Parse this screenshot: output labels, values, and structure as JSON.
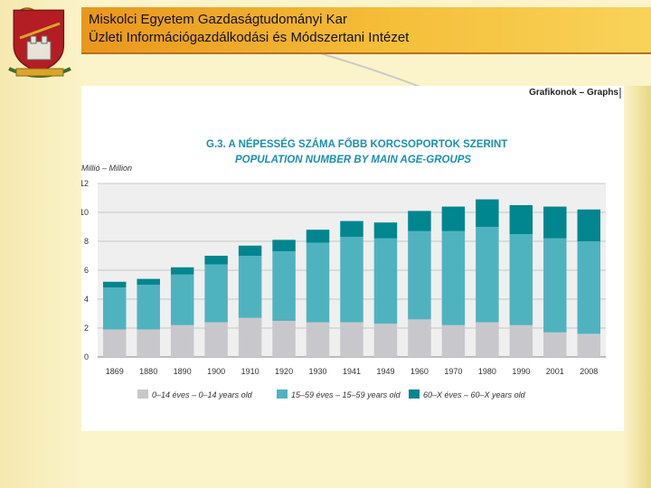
{
  "header": {
    "line1": "Miskolci Egyetem Gazdaságtudományi Kar",
    "line2": "Üzleti Információgazdálkodási és Módszertani Intézet"
  },
  "logo": {
    "icon": "university-crest-icon"
  },
  "figure": {
    "section_label": "Grafikonok – Graphs",
    "y_unit_label": "Millió – Million"
  },
  "chart_data": {
    "type": "bar",
    "stacked": true,
    "title": "G.3. A NÉPESSÉG SZÁMA FŐBB KORCSOPORTOK SZERINT",
    "subtitle": "POPULATION NUMBER BY MAIN AGE-GROUPS",
    "xlabel": "",
    "ylabel": "Millió – Million",
    "ylim": [
      0,
      12
    ],
    "yticks": [
      0,
      2,
      4,
      6,
      8,
      10,
      12
    ],
    "grid": true,
    "categories": [
      "1869",
      "1880",
      "1890",
      "1900",
      "1910",
      "1920",
      "1930",
      "1941",
      "1949",
      "1960",
      "1970",
      "1980",
      "1990",
      "2001",
      "2008"
    ],
    "series": [
      {
        "name": "0–14 éves – 0–14 years old",
        "color": "#c8c8cc",
        "values": [
          1.9,
          1.9,
          2.2,
          2.4,
          2.7,
          2.5,
          2.4,
          2.4,
          2.3,
          2.6,
          2.2,
          2.4,
          2.2,
          1.7,
          1.6
        ]
      },
      {
        "name": "15–59 éves – 15–59 years old",
        "color": "#4fb3bf",
        "values": [
          2.9,
          3.1,
          3.5,
          4.0,
          4.3,
          4.8,
          5.5,
          5.9,
          5.9,
          6.1,
          6.5,
          6.6,
          6.3,
          6.5,
          6.4
        ]
      },
      {
        "name": "60–X éves – 60–X years old",
        "color": "#00868f",
        "values": [
          0.4,
          0.4,
          0.5,
          0.6,
          0.7,
          0.8,
          0.9,
          1.1,
          1.1,
          1.4,
          1.7,
          1.9,
          2.0,
          2.2,
          2.2
        ]
      }
    ],
    "legend_position": "bottom"
  }
}
